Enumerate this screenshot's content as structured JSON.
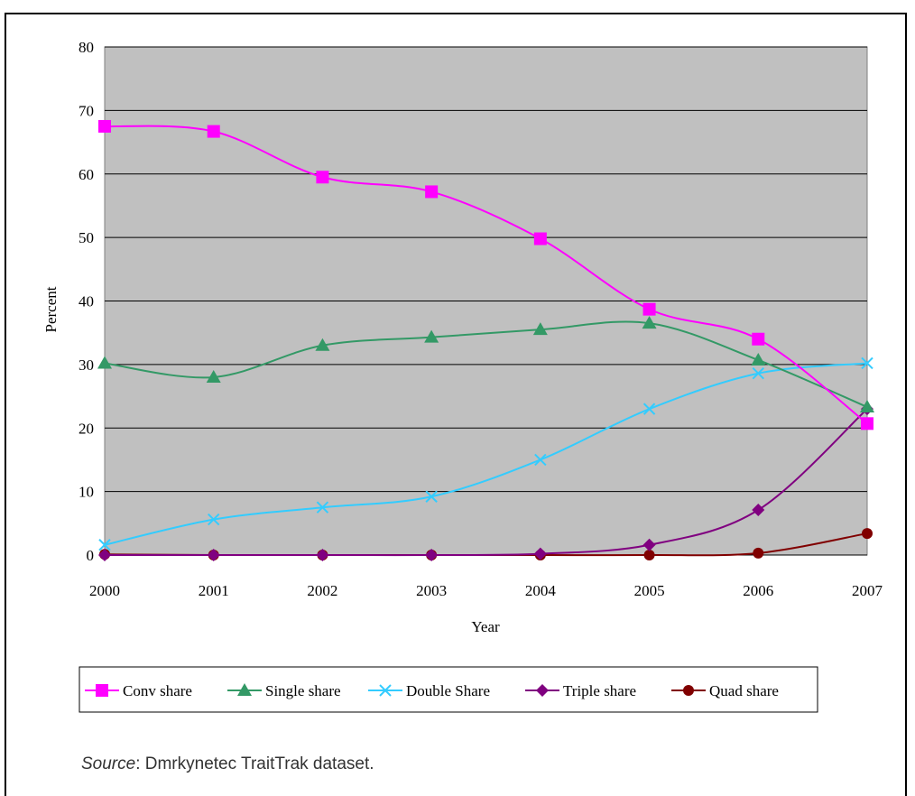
{
  "chart_data": {
    "type": "line",
    "title": "",
    "xlabel": "Year",
    "ylabel": "Percent",
    "x": [
      "2000",
      "2001",
      "2002",
      "2003",
      "2004",
      "2005",
      "2006",
      "2007"
    ],
    "ylim": [
      0,
      80
    ],
    "yticks": [
      "0",
      "10",
      "20",
      "30",
      "40",
      "50",
      "60",
      "70",
      "80"
    ],
    "grid": true,
    "legend_position": "bottom",
    "plot_background": "#c0c0c0",
    "series": [
      {
        "name": "Conv share",
        "color": "#ff00ff",
        "marker": "square",
        "values": [
          67.5,
          66.7,
          59.5,
          57.2,
          49.8,
          38.7,
          34.0,
          20.7
        ]
      },
      {
        "name": "Single share",
        "color": "#339966",
        "marker": "triangle",
        "values": [
          30.2,
          28.0,
          33.0,
          34.3,
          35.5,
          36.5,
          30.7,
          23.3
        ]
      },
      {
        "name": "Double Share",
        "color": "#33ccff",
        "marker": "x",
        "values": [
          1.6,
          5.6,
          7.5,
          9.2,
          15.0,
          23.0,
          28.6,
          30.2
        ]
      },
      {
        "name": "Triple share",
        "color": "#800080",
        "marker": "diamond",
        "values": [
          0.0,
          0.0,
          0.0,
          0.0,
          0.2,
          1.6,
          7.1,
          23.0
        ]
      },
      {
        "name": "Quad share",
        "color": "#800000",
        "marker": "circle",
        "values": [
          0.1,
          0.0,
          0.0,
          0.0,
          0.0,
          0.0,
          0.3,
          3.4
        ]
      }
    ]
  },
  "source": {
    "label": "Source",
    "text": ": Dmrkynetec TraitTrak dataset."
  }
}
